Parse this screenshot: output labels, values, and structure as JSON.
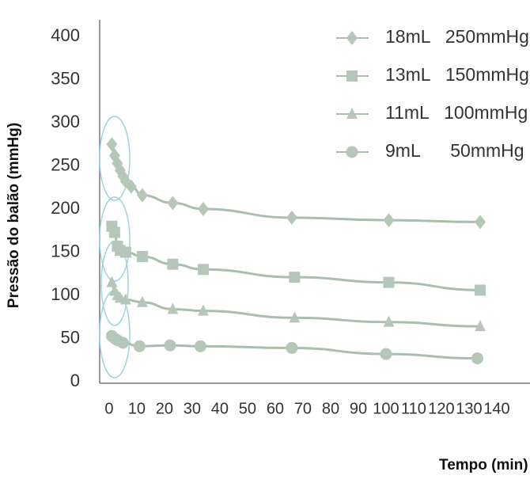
{
  "chart_data": {
    "type": "line",
    "x_label": "Tempo (min)",
    "y_label": "Pressão do balão (mmHg)",
    "xlim": [
      -3.4,
      152
    ],
    "ylim": [
      0,
      400
    ],
    "xticks": [
      0,
      10,
      20,
      30,
      40,
      50,
      60,
      70,
      80,
      90,
      100,
      110,
      120,
      130,
      140
    ],
    "yticks": [
      0,
      50,
      100,
      150,
      200,
      250,
      300,
      350,
      400
    ],
    "series": [
      {
        "name": "18mL   250mmHg",
        "color": "#b5c7b8",
        "marker": "diamond",
        "x": [
          1,
          2,
          3,
          4,
          5,
          6,
          8,
          12,
          23,
          34,
          66,
          101,
          134
        ],
        "values": [
          275,
          262,
          253,
          245,
          238,
          232,
          226,
          216,
          207,
          200,
          190,
          187,
          185
        ]
      },
      {
        "name": "13mL   150mmHg",
        "color": "#b5c7b8",
        "marker": "square",
        "x": [
          1,
          2,
          3,
          4,
          6,
          12,
          23,
          34,
          67,
          101,
          134
        ],
        "values": [
          180,
          173,
          157,
          152,
          150,
          145,
          136,
          130,
          121,
          115,
          106
        ]
      },
      {
        "name": "11mL   100mmHg",
        "color": "#b5c7b8",
        "marker": "triangle",
        "x": [
          1,
          2,
          3,
          4,
          6,
          12,
          23,
          34,
          67,
          101,
          134
        ],
        "values": [
          115,
          105,
          100,
          97,
          95,
          92,
          84,
          82,
          74,
          69,
          64
        ]
      },
      {
        "name": "9mL      50mmHg",
        "color": "#b5c7b8",
        "marker": "circle",
        "x": [
          1,
          2,
          3,
          5,
          11,
          22,
          33,
          66,
          100,
          133
        ],
        "values": [
          53,
          50,
          48,
          45,
          41,
          42,
          41,
          39,
          32,
          27
        ]
      }
    ]
  }
}
